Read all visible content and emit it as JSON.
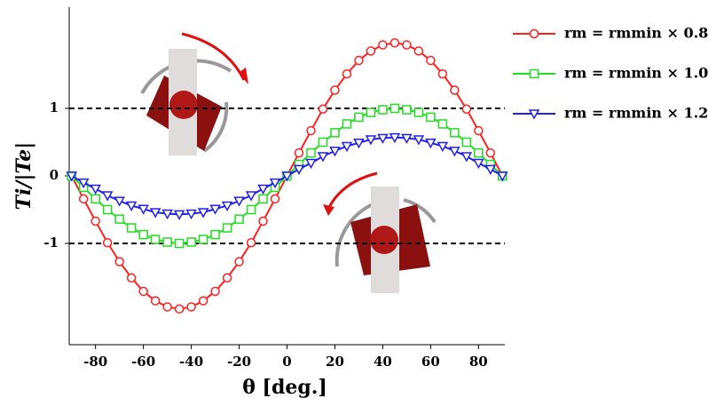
{
  "chart_data": {
    "type": "line",
    "x_label": "θ [deg.]",
    "y_label": "Ti/|Te|",
    "x": [
      -90,
      -85,
      -80,
      -75,
      -70,
      -65,
      -60,
      -55,
      -50,
      -45,
      -40,
      -35,
      -30,
      -25,
      -20,
      -15,
      -10,
      -5,
      0,
      5,
      10,
      15,
      20,
      25,
      30,
      35,
      40,
      45,
      50,
      55,
      60,
      65,
      70,
      75,
      80,
      85,
      90
    ],
    "series": [
      {
        "name": "rm = rmmin × 0.8",
        "color": "#ff2020",
        "marker": "circle",
        "values": [
          0,
          -0.34,
          -0.67,
          -0.99,
          -1.27,
          -1.51,
          -1.71,
          -1.85,
          -1.94,
          -1.97,
          -1.94,
          -1.85,
          -1.71,
          -1.51,
          -1.27,
          -0.99,
          -0.67,
          -0.34,
          0,
          0.34,
          0.67,
          0.99,
          1.27,
          1.51,
          1.71,
          1.85,
          1.94,
          1.97,
          1.94,
          1.85,
          1.71,
          1.51,
          1.27,
          0.99,
          0.67,
          0.34,
          0
        ]
      },
      {
        "name": "rm = rmmin × 1.0",
        "color": "#22dd22",
        "marker": "square",
        "values": [
          0,
          -0.17,
          -0.34,
          -0.5,
          -0.64,
          -0.77,
          -0.87,
          -0.94,
          -0.98,
          -1,
          -0.98,
          -0.94,
          -0.87,
          -0.77,
          -0.64,
          -0.5,
          -0.34,
          -0.17,
          0,
          0.17,
          0.34,
          0.5,
          0.64,
          0.77,
          0.87,
          0.94,
          0.98,
          1,
          0.98,
          0.94,
          0.87,
          0.77,
          0.64,
          0.5,
          0.34,
          0.17,
          0
        ]
      },
      {
        "name": "rm = rmmin × 1.2",
        "color": "#2020ee",
        "marker": "triangle-down",
        "values": [
          0,
          -0.1,
          -0.19,
          -0.29,
          -0.37,
          -0.44,
          -0.49,
          -0.54,
          -0.56,
          -0.57,
          -0.56,
          -0.54,
          -0.49,
          -0.44,
          -0.37,
          -0.29,
          -0.19,
          -0.1,
          0,
          0.1,
          0.19,
          0.29,
          0.37,
          0.44,
          0.49,
          0.54,
          0.56,
          0.57,
          0.56,
          0.54,
          0.49,
          0.44,
          0.37,
          0.29,
          0.19,
          0.1,
          0
        ]
      }
    ],
    "xlim": [
      -91,
      91
    ],
    "xticks": [
      -80,
      -60,
      -40,
      -20,
      0,
      20,
      40,
      60,
      80
    ],
    "ylim": [
      -2.5,
      2.5
    ],
    "yticks": [
      -1,
      0,
      1
    ]
  }
}
